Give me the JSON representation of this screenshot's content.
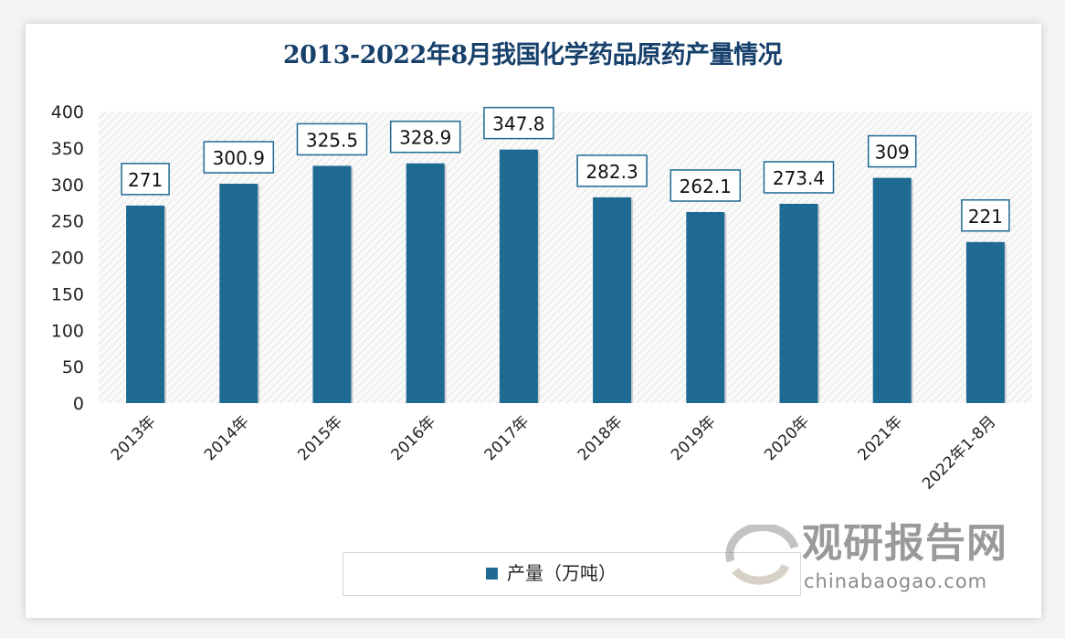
{
  "chart_data": {
    "type": "bar",
    "title": "2013-2022年8月我国化学药品原药产量情况",
    "categories": [
      "2013年",
      "2014年",
      "2015年",
      "2016年",
      "2017年",
      "2018年",
      "2019年",
      "2020年",
      "2021年",
      "2022年1-8月"
    ],
    "series": [
      {
        "name": "产量（万吨）",
        "values": [
          271,
          300.9,
          325.5,
          328.9,
          347.8,
          282.3,
          262.1,
          273.4,
          309,
          221
        ],
        "labels": [
          "271",
          "300.9",
          "325.5",
          "328.9",
          "347.8",
          "282.3",
          "262.1",
          "273.4",
          "309",
          "221"
        ]
      }
    ],
    "ylim": [
      0,
      400
    ],
    "yticks": [
      "0",
      "50",
      "100",
      "150",
      "200",
      "250",
      "300",
      "350",
      "400"
    ],
    "xlabel": "",
    "ylabel": "",
    "grid": false,
    "legend": "bottom",
    "colors": {
      "bar": "#1f6a93",
      "title": "#17406b",
      "label_border": "#1f6a93"
    }
  },
  "watermark": {
    "name": "观研报告网",
    "url": "chinabaogao.com"
  }
}
